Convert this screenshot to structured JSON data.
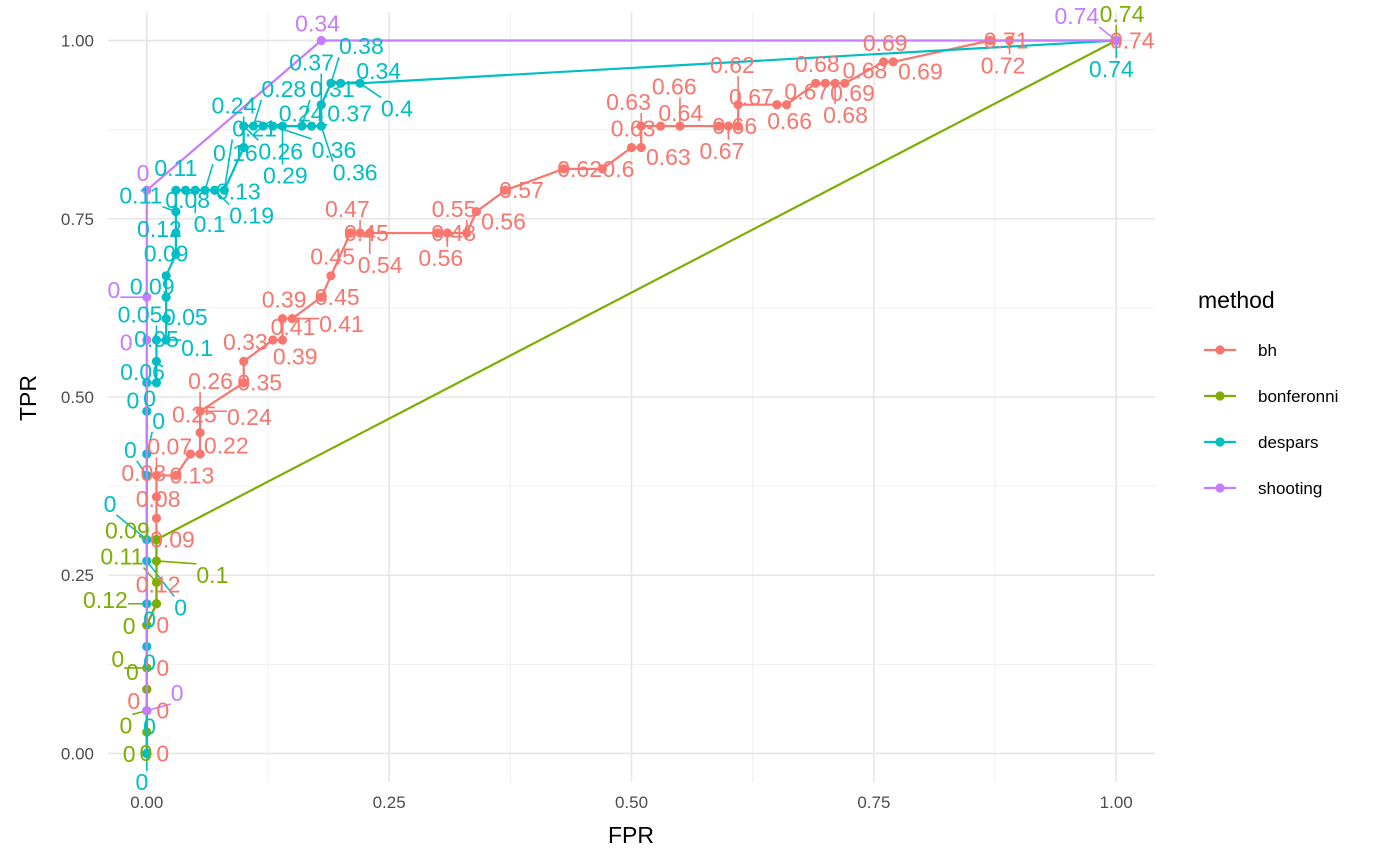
{
  "chart_data": {
    "type": "line",
    "title": "",
    "xlabel": "FPR",
    "ylabel": "TPR",
    "xlim": [
      -0.04,
      1.04
    ],
    "ylim": [
      -0.04,
      1.04
    ],
    "x_ticks": [
      "0.00",
      "0.25",
      "0.50",
      "0.75",
      "1.00"
    ],
    "y_ticks": [
      "0.00",
      "0.25",
      "0.50",
      "0.75",
      "1.00"
    ],
    "grid": true,
    "legend": {
      "title": "method",
      "position": "right"
    },
    "series": [
      {
        "name": "bh",
        "color": "#F8766D",
        "points": [
          {
            "x": 0,
            "y": 0,
            "label": "0"
          },
          {
            "x": 0,
            "y": 0.06,
            "label": "0"
          },
          {
            "x": 0,
            "y": 0.09,
            "label": "0"
          },
          {
            "x": 0,
            "y": 0.12,
            "label": "0"
          },
          {
            "x": 0,
            "y": 0.18,
            "label": "0"
          },
          {
            "x": 0.01,
            "y": 0.21,
            "label": "0.12"
          },
          {
            "x": 0.01,
            "y": 0.3,
            "label": "0.09"
          },
          {
            "x": 0.01,
            "y": 0.33,
            "label": "0.08"
          },
          {
            "x": 0.01,
            "y": 0.36,
            "label": "0.08"
          },
          {
            "x": 0.01,
            "y": 0.39,
            "label": "0.07"
          },
          {
            "x": 0.03,
            "y": 0.39,
            "label": "0.13"
          },
          {
            "x": 0.045,
            "y": 0.42,
            "label": "0.22"
          },
          {
            "x": 0.055,
            "y": 0.42,
            "label": "0.25"
          },
          {
            "x": 0.055,
            "y": 0.45,
            "label": "0.26"
          },
          {
            "x": 0.055,
            "y": 0.48,
            "label": "0.24"
          },
          {
            "x": 0.1,
            "y": 0.52,
            "label": "0.35"
          },
          {
            "x": 0.1,
            "y": 0.55,
            "label": "0.33"
          },
          {
            "x": 0.13,
            "y": 0.58,
            "label": "0.41"
          },
          {
            "x": 0.14,
            "y": 0.58,
            "label": "0.39"
          },
          {
            "x": 0.14,
            "y": 0.61,
            "label": "0.39"
          },
          {
            "x": 0.15,
            "y": 0.61,
            "label": "0.41"
          },
          {
            "x": 0.18,
            "y": 0.64,
            "label": "0.45"
          },
          {
            "x": 0.19,
            "y": 0.67,
            "label": "0.45"
          },
          {
            "x": 0.21,
            "y": 0.73,
            "label": "0.45"
          },
          {
            "x": 0.22,
            "y": 0.73,
            "label": "0.47"
          },
          {
            "x": 0.23,
            "y": 0.73,
            "label": "0.54"
          },
          {
            "x": 0.3,
            "y": 0.73,
            "label": "0.48"
          },
          {
            "x": 0.31,
            "y": 0.73,
            "label": "0.56"
          },
          {
            "x": 0.33,
            "y": 0.73,
            "label": "0.55"
          },
          {
            "x": 0.34,
            "y": 0.76,
            "label": "0.56"
          },
          {
            "x": 0.37,
            "y": 0.79,
            "label": "0.57"
          },
          {
            "x": 0.43,
            "y": 0.82,
            "label": "0.62"
          },
          {
            "x": 0.47,
            "y": 0.82,
            "label": "0.6"
          },
          {
            "x": 0.5,
            "y": 0.85,
            "label": "0.63"
          },
          {
            "x": 0.51,
            "y": 0.85,
            "label": "0.63"
          },
          {
            "x": 0.51,
            "y": 0.88,
            "label": "0.63"
          },
          {
            "x": 0.53,
            "y": 0.88,
            "label": "0.64"
          },
          {
            "x": 0.55,
            "y": 0.88,
            "label": "0.66"
          },
          {
            "x": 0.59,
            "y": 0.88,
            "label": "0.66"
          },
          {
            "x": 0.6,
            "y": 0.88,
            "label": "0.67"
          },
          {
            "x": 0.61,
            "y": 0.88,
            "label": "0.67"
          },
          {
            "x": 0.61,
            "y": 0.91,
            "label": "0.62"
          },
          {
            "x": 0.65,
            "y": 0.91,
            "label": "0.66"
          },
          {
            "x": 0.66,
            "y": 0.91,
            "label": "0.67"
          },
          {
            "x": 0.69,
            "y": 0.94,
            "label": "0.68"
          },
          {
            "x": 0.7,
            "y": 0.94,
            "label": "0.69"
          },
          {
            "x": 0.71,
            "y": 0.94,
            "label": "0.68"
          },
          {
            "x": 0.72,
            "y": 0.94,
            "label": "0.68"
          },
          {
            "x": 0.76,
            "y": 0.97,
            "label": "0.69"
          },
          {
            "x": 0.77,
            "y": 0.97,
            "label": "0.69"
          },
          {
            "x": 0.87,
            "y": 1.0,
            "label": "0.71"
          },
          {
            "x": 0.89,
            "y": 1.0,
            "label": "0.72"
          },
          {
            "x": 1.0,
            "y": 1.0,
            "label": "0.74"
          }
        ]
      },
      {
        "name": "bonferonni",
        "color": "#7CAE00",
        "points": [
          {
            "x": 0,
            "y": 0,
            "label": "0"
          },
          {
            "x": 0,
            "y": 0.03,
            "label": "0"
          },
          {
            "x": 0,
            "y": 0.06,
            "label": "0"
          },
          {
            "x": 0,
            "y": 0.09,
            "label": "0"
          },
          {
            "x": 0,
            "y": 0.12,
            "label": "0"
          },
          {
            "x": 0,
            "y": 0.18,
            "label": "0"
          },
          {
            "x": 0.01,
            "y": 0.21,
            "label": "0.12"
          },
          {
            "x": 0.01,
            "y": 0.24,
            "label": "0.11"
          },
          {
            "x": 0.01,
            "y": 0.27,
            "label": "0.1"
          },
          {
            "x": 0.01,
            "y": 0.3,
            "label": "0.09"
          },
          {
            "x": 1.0,
            "y": 1.0,
            "label": "0.74"
          }
        ]
      },
      {
        "name": "despars",
        "color": "#00BFC4",
        "points": [
          {
            "x": 0,
            "y": 0,
            "label": "0"
          },
          {
            "x": 0,
            "y": 0.06,
            "label": "0"
          },
          {
            "x": 0,
            "y": 0.15,
            "label": "0"
          },
          {
            "x": 0,
            "y": 0.21,
            "label": "0"
          },
          {
            "x": 0,
            "y": 0.27,
            "label": "0"
          },
          {
            "x": 0,
            "y": 0.3,
            "label": "0"
          },
          {
            "x": 0,
            "y": 0.39,
            "label": "0"
          },
          {
            "x": 0,
            "y": 0.42,
            "label": "0"
          },
          {
            "x": 0,
            "y": 0.48,
            "label": "0"
          },
          {
            "x": 0,
            "y": 0.52,
            "label": "0"
          },
          {
            "x": 0.01,
            "y": 0.52,
            "label": "0.06"
          },
          {
            "x": 0.01,
            "y": 0.55,
            "label": "0.05"
          },
          {
            "x": 0.01,
            "y": 0.58,
            "label": "0.05"
          },
          {
            "x": 0.02,
            "y": 0.58,
            "label": "0.1"
          },
          {
            "x": 0.02,
            "y": 0.61,
            "label": "0.05"
          },
          {
            "x": 0.02,
            "y": 0.64,
            "label": "0.09"
          },
          {
            "x": 0.02,
            "y": 0.67,
            "label": "0.09"
          },
          {
            "x": 0.03,
            "y": 0.7,
            "label": "0.12"
          },
          {
            "x": 0.03,
            "y": 0.73,
            "label": "0.08"
          },
          {
            "x": 0.03,
            "y": 0.76,
            "label": "0.11"
          },
          {
            "x": 0.03,
            "y": 0.79,
            "label": "0.11"
          },
          {
            "x": 0.04,
            "y": 0.79,
            "label": "0.13"
          },
          {
            "x": 0.05,
            "y": 0.79,
            "label": "0.1"
          },
          {
            "x": 0.06,
            "y": 0.79,
            "label": "0.16"
          },
          {
            "x": 0.07,
            "y": 0.79,
            "label": "0.19"
          },
          {
            "x": 0.08,
            "y": 0.79,
            "label": "0.21"
          },
          {
            "x": 0.1,
            "y": 0.85,
            "label": "0.24"
          },
          {
            "x": 0.1,
            "y": 0.88,
            "label": "0.26"
          },
          {
            "x": 0.11,
            "y": 0.88,
            "label": "0.28"
          },
          {
            "x": 0.12,
            "y": 0.88,
            "label": "0.24"
          },
          {
            "x": 0.13,
            "y": 0.88,
            "label": "0.36"
          },
          {
            "x": 0.14,
            "y": 0.88,
            "label": "0.29"
          },
          {
            "x": 0.16,
            "y": 0.88,
            "label": "0.31"
          },
          {
            "x": 0.17,
            "y": 0.88,
            "label": "0.37"
          },
          {
            "x": 0.18,
            "y": 0.88,
            "label": "0.36"
          },
          {
            "x": 0.18,
            "y": 0.91,
            "label": "0.37"
          },
          {
            "x": 0.19,
            "y": 0.94,
            "label": "0.38"
          },
          {
            "x": 0.2,
            "y": 0.94,
            "label": "0.34"
          },
          {
            "x": 0.22,
            "y": 0.94,
            "label": "0.4"
          },
          {
            "x": 1.0,
            "y": 1.0,
            "label": "0.74"
          }
        ]
      },
      {
        "name": "shooting",
        "color": "#C77CFF",
        "points": [
          {
            "x": 0,
            "y": 0.06,
            "label": "0"
          },
          {
            "x": 0,
            "y": 0.58,
            "label": "0"
          },
          {
            "x": 0,
            "y": 0.64,
            "label": "0"
          },
          {
            "x": 0,
            "y": 0.79,
            "label": "0"
          },
          {
            "x": 0.18,
            "y": 1.0,
            "label": "0.34"
          },
          {
            "x": 1.0,
            "y": 1.0,
            "label": "0.74"
          }
        ]
      }
    ]
  }
}
